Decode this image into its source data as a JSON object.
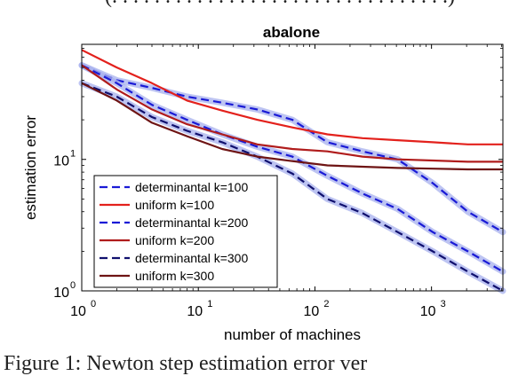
{
  "captions": {
    "top": "(. . . . . . . . . . . . . . . . . . . . . . . . . . . . . . . .)",
    "bottom": "Figure 1: Newton step estimation error ver"
  },
  "chart_data": {
    "type": "line",
    "title": "abalone",
    "xlabel": "number of machines",
    "ylabel": "estimation error",
    "xscale": "log",
    "yscale": "log",
    "xlim": [
      1,
      4096
    ],
    "ylim": [
      1,
      75
    ],
    "xticks": [
      {
        "value": 1,
        "base": "10",
        "exp": "0"
      },
      {
        "value": 10,
        "base": "10",
        "exp": "1"
      },
      {
        "value": 100,
        "base": "10",
        "exp": "2"
      },
      {
        "value": 1000,
        "base": "10",
        "exp": "3"
      }
    ],
    "yticks": [
      {
        "value": 1,
        "base": "10",
        "exp": "0"
      },
      {
        "value": 10,
        "base": "10",
        "exp": "1"
      }
    ],
    "grid": false,
    "legend_position": "bottom-left",
    "series": [
      {
        "name": "determinantal k=100",
        "style": "dashed",
        "color": "#1a1ad6",
        "halo": true,
        "x": [
          1,
          2,
          4,
          8,
          16,
          32,
          64,
          128,
          256,
          512,
          1024,
          2048,
          4096
        ],
        "y": [
          52,
          40,
          35,
          30,
          27,
          24,
          20,
          13.5,
          11.5,
          10,
          6.6,
          4.0,
          2.8
        ]
      },
      {
        "name": "uniform k=100",
        "style": "solid",
        "color": "#e3211c",
        "x": [
          1,
          2,
          4,
          8,
          16,
          32,
          64,
          128,
          256,
          512,
          1024,
          2048,
          4096
        ],
        "y": [
          68,
          50,
          38,
          28,
          23.5,
          20,
          17.5,
          15.5,
          14.5,
          14,
          13.5,
          13,
          13
        ]
      },
      {
        "name": "determinantal k=200",
        "style": "dashed",
        "color": "#1a1ad6",
        "halo": true,
        "x": [
          1,
          2,
          4,
          8,
          16,
          32,
          64,
          128,
          256,
          512,
          1024,
          2048,
          4096
        ],
        "y": [
          52,
          38,
          26,
          20,
          15.5,
          12.5,
          10.5,
          7.5,
          5.5,
          4.2,
          2.8,
          2.0,
          1.4
        ]
      },
      {
        "name": "uniform k=200",
        "style": "solid",
        "color": "#b01c1c",
        "x": [
          1,
          2,
          4,
          8,
          16,
          32,
          64,
          128,
          256,
          512,
          1024,
          2048,
          4096
        ],
        "y": [
          52,
          34,
          24,
          18.5,
          15.5,
          13,
          12,
          11.5,
          10.5,
          10,
          9.8,
          9.6,
          9.6
        ]
      },
      {
        "name": "determinantal k=300",
        "style": "dashed",
        "color": "#10106e",
        "halo": true,
        "x": [
          1,
          2,
          4,
          8,
          16,
          32,
          64,
          128,
          256,
          512,
          1024,
          2048,
          4096
        ],
        "y": [
          38,
          30,
          21,
          16.5,
          13.5,
          10.5,
          7.8,
          5.0,
          3.9,
          2.8,
          2.0,
          1.4,
          1.0
        ]
      },
      {
        "name": "uniform k=300",
        "style": "solid",
        "color": "#6e1414",
        "x": [
          1,
          2,
          4,
          8,
          16,
          32,
          64,
          128,
          256,
          512,
          1024,
          2048,
          4096
        ],
        "y": [
          38,
          28,
          19,
          15,
          12,
          10.5,
          9.7,
          9,
          8.8,
          8.6,
          8.5,
          8.4,
          8.4
        ]
      }
    ]
  }
}
